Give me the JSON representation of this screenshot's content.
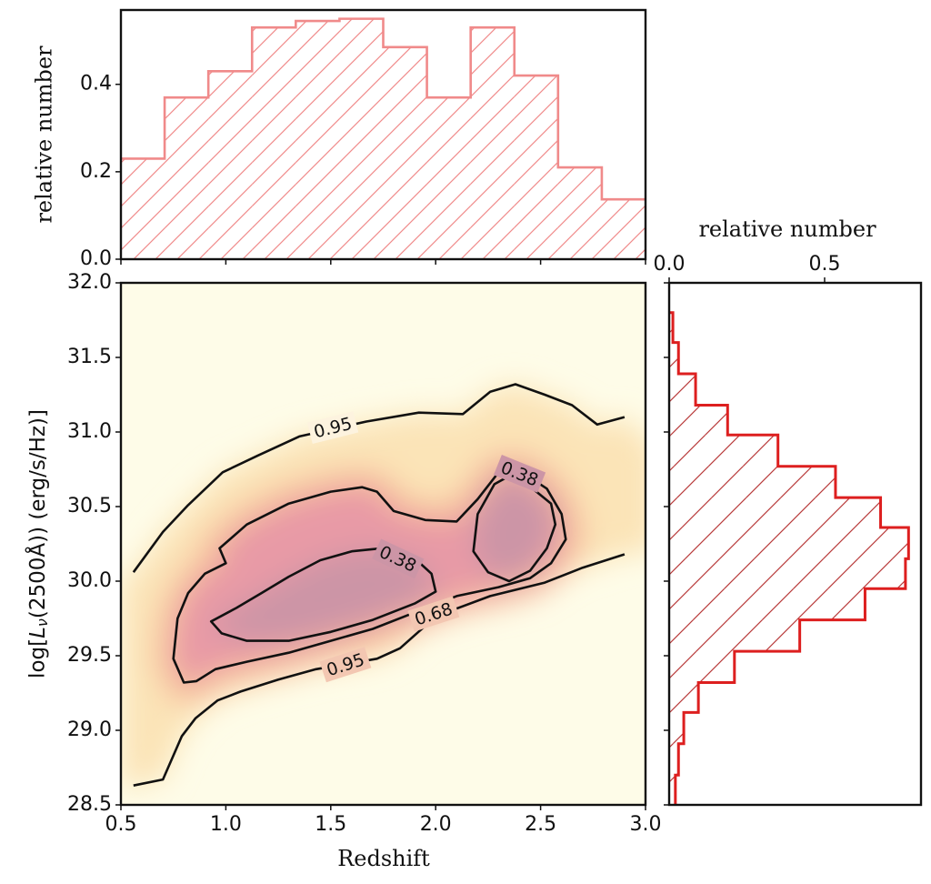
{
  "chart_data": [
    {
      "id": "top-histogram",
      "type": "bar",
      "style": "step-histogram-hatched",
      "color": "#f08a8a",
      "xlim": [
        0.5,
        3.0
      ],
      "ylim": [
        0.0,
        0.57
      ],
      "ylabel": "relative number",
      "yticks": [
        0.0,
        0.2,
        0.4
      ],
      "ytick_labels": [
        "0.0",
        "0.2",
        "0.4"
      ],
      "xticks": [
        0.5,
        1.0,
        1.5,
        2.0,
        2.5,
        3.0
      ],
      "bin_edges": [
        0.5,
        0.7083,
        0.9167,
        1.125,
        1.3333,
        1.5417,
        1.75,
        1.9583,
        2.1667,
        2.375,
        2.5833,
        2.7917,
        3.0
      ],
      "values": [
        0.23,
        0.37,
        0.43,
        0.53,
        0.545,
        0.55,
        0.485,
        0.37,
        0.53,
        0.42,
        0.21,
        0.137
      ]
    },
    {
      "id": "main-density",
      "type": "heatmap",
      "xlabel": "Redshift",
      "ylabel": "log[Lν(2500Å)) (erg/s/Hz)]",
      "xlim": [
        0.5,
        3.0
      ],
      "ylim": [
        28.5,
        32.0
      ],
      "xticks": [
        0.5,
        1.0,
        1.5,
        2.0,
        2.5,
        3.0
      ],
      "xtick_labels": [
        "0.5",
        "1.0",
        "1.5",
        "2.0",
        "2.5",
        "3.0"
      ],
      "yticks": [
        28.5,
        29.0,
        29.5,
        30.0,
        30.5,
        31.0,
        31.5,
        32.0
      ],
      "ytick_labels": [
        "28.5",
        "29.0",
        "29.5",
        "30.0",
        "30.5",
        "31.0",
        "31.5",
        "32.0"
      ],
      "colormap": [
        "#fefce8",
        "#fbe3b4",
        "#f6b89a",
        "#e89aa6",
        "#cc95a6"
      ],
      "contour_levels": [
        "0.38",
        "0.68",
        "0.95"
      ],
      "contours": [
        {
          "level": "0.95",
          "part": "upper",
          "points": [
            [
              0.56,
              30.06
            ],
            [
              0.7,
              30.33
            ],
            [
              0.82,
              30.51
            ],
            [
              0.985,
              30.73
            ],
            [
              1.15,
              30.84
            ],
            [
              1.35,
              30.97
            ],
            [
              1.67,
              31.07
            ],
            [
              1.92,
              31.13
            ],
            [
              2.13,
              31.12
            ],
            [
              2.26,
              31.27
            ],
            [
              2.38,
              31.32
            ],
            [
              2.52,
              31.25
            ],
            [
              2.65,
              31.18
            ],
            [
              2.77,
              31.05
            ],
            [
              2.9,
              31.1
            ]
          ],
          "label_at": [
            1.51,
            31.03
          ]
        },
        {
          "level": "0.95",
          "part": "lower",
          "points": [
            [
              0.56,
              28.63
            ],
            [
              0.7,
              28.67
            ],
            [
              0.79,
              28.96
            ],
            [
              0.855,
              29.08
            ],
            [
              0.96,
              29.2
            ],
            [
              1.07,
              29.26
            ],
            [
              1.25,
              29.34
            ],
            [
              1.43,
              29.41
            ],
            [
              1.72,
              29.48
            ],
            [
              1.83,
              29.55
            ],
            [
              1.95,
              29.7
            ],
            [
              2.05,
              29.79
            ],
            [
              2.26,
              29.9
            ],
            [
              2.52,
              29.99
            ],
            [
              2.7,
              30.09
            ],
            [
              2.9,
              30.18
            ]
          ],
          "label_at": [
            1.57,
            29.44
          ]
        },
        {
          "level": "0.68",
          "part": "main",
          "points": [
            [
              0.8,
              29.32
            ],
            [
              0.75,
              29.48
            ],
            [
              0.77,
              29.75
            ],
            [
              0.82,
              29.92
            ],
            [
              0.9,
              30.05
            ],
            [
              1.0,
              30.12
            ],
            [
              0.97,
              30.22
            ],
            [
              1.1,
              30.38
            ],
            [
              1.3,
              30.52
            ],
            [
              1.5,
              30.6
            ],
            [
              1.65,
              30.63
            ],
            [
              1.72,
              30.6
            ],
            [
              1.8,
              30.47
            ],
            [
              1.95,
              30.41
            ],
            [
              2.1,
              30.4
            ],
            [
              2.2,
              30.55
            ],
            [
              2.3,
              30.73
            ],
            [
              2.4,
              30.74
            ],
            [
              2.53,
              30.62
            ],
            [
              2.6,
              30.45
            ],
            [
              2.62,
              30.28
            ],
            [
              2.55,
              30.12
            ],
            [
              2.45,
              30.02
            ],
            [
              2.3,
              29.96
            ],
            [
              2.1,
              29.9
            ],
            [
              1.9,
              29.79
            ],
            [
              1.7,
              29.68
            ],
            [
              1.5,
              29.6
            ],
            [
              1.3,
              29.52
            ],
            [
              1.1,
              29.46
            ],
            [
              0.95,
              29.41
            ],
            [
              0.86,
              29.33
            ],
            [
              0.8,
              29.32
            ]
          ],
          "label_at": [
            1.99,
            29.78
          ]
        },
        {
          "level": "0.38",
          "part": "left",
          "points": [
            [
              1.74,
              30.22
            ],
            [
              1.6,
              30.2
            ],
            [
              1.45,
              30.14
            ],
            [
              1.3,
              30.03
            ],
            [
              1.17,
              29.92
            ],
            [
              1.05,
              29.82
            ],
            [
              0.93,
              29.73
            ],
            [
              0.98,
              29.65
            ],
            [
              1.1,
              29.6
            ],
            [
              1.3,
              29.6
            ],
            [
              1.5,
              29.66
            ],
            [
              1.7,
              29.74
            ],
            [
              1.9,
              29.85
            ],
            [
              2.0,
              29.93
            ],
            [
              1.98,
              30.05
            ],
            [
              1.91,
              30.14
            ]
          ],
          "label_at": [
            1.82,
            30.15
          ]
        },
        {
          "level": "0.38",
          "part": "right",
          "points": [
            [
              2.37,
              30.72
            ],
            [
              2.28,
              30.65
            ],
            [
              2.2,
              30.45
            ],
            [
              2.18,
              30.2
            ],
            [
              2.25,
              30.06
            ],
            [
              2.35,
              30.0
            ],
            [
              2.45,
              30.07
            ],
            [
              2.53,
              30.22
            ],
            [
              2.57,
              30.38
            ],
            [
              2.55,
              30.52
            ],
            [
              2.48,
              30.6
            ]
          ],
          "label_at": [
            2.4,
            30.72
          ]
        }
      ]
    },
    {
      "id": "right-histogram",
      "type": "bar",
      "orientation": "horizontal",
      "style": "step-histogram-hatched",
      "color": "#dd1f1f",
      "xlim": [
        0.0,
        0.81
      ],
      "ylim": [
        28.5,
        32.0
      ],
      "xlabel": "relative number",
      "xticks": [
        0.0,
        0.5
      ],
      "xtick_labels": [
        "0.0",
        "0.5"
      ],
      "bin_edges": [
        28.5,
        28.7,
        28.91,
        29.12,
        29.32,
        29.53,
        29.74,
        29.95,
        30.15,
        30.36,
        30.56,
        30.77,
        30.98,
        31.18,
        31.39,
        31.6,
        31.8
      ],
      "values": [
        0.02,
        0.03,
        0.047,
        0.094,
        0.21,
        0.42,
        0.63,
        0.76,
        0.77,
        0.68,
        0.535,
        0.35,
        0.188,
        0.085,
        0.03,
        0.012
      ]
    }
  ]
}
